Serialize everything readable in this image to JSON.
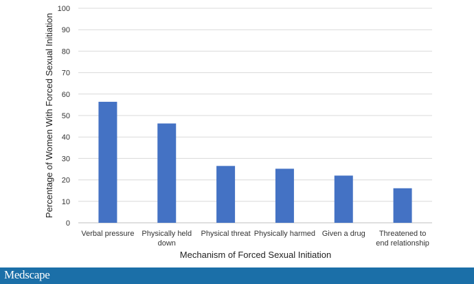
{
  "chart_data": {
    "type": "bar",
    "title": "",
    "xlabel": "Mechanism of Forced Sexual Initiation",
    "ylabel": "Percentage of Women With Forced Sexual Initiation",
    "categories": [
      [
        "Verbal pressure"
      ],
      [
        "Physically held",
        "down"
      ],
      [
        "Physical threat"
      ],
      [
        "Physically harmed"
      ],
      [
        "Given a drug"
      ],
      [
        "Threatened to",
        "end relationship"
      ]
    ],
    "values": [
      56.4,
      46.3,
      26.5,
      25.2,
      22.0,
      16.1
    ],
    "ylim": [
      0,
      100
    ],
    "yticks": [
      0,
      10,
      20,
      30,
      40,
      50,
      60,
      70,
      80,
      90,
      100
    ],
    "grid": true,
    "legend": "none",
    "bar_color": "#4472c4",
    "grid_color": "#d9d9d9"
  },
  "footer": {
    "brand": "Medscape",
    "color": "#1b6fa8"
  }
}
